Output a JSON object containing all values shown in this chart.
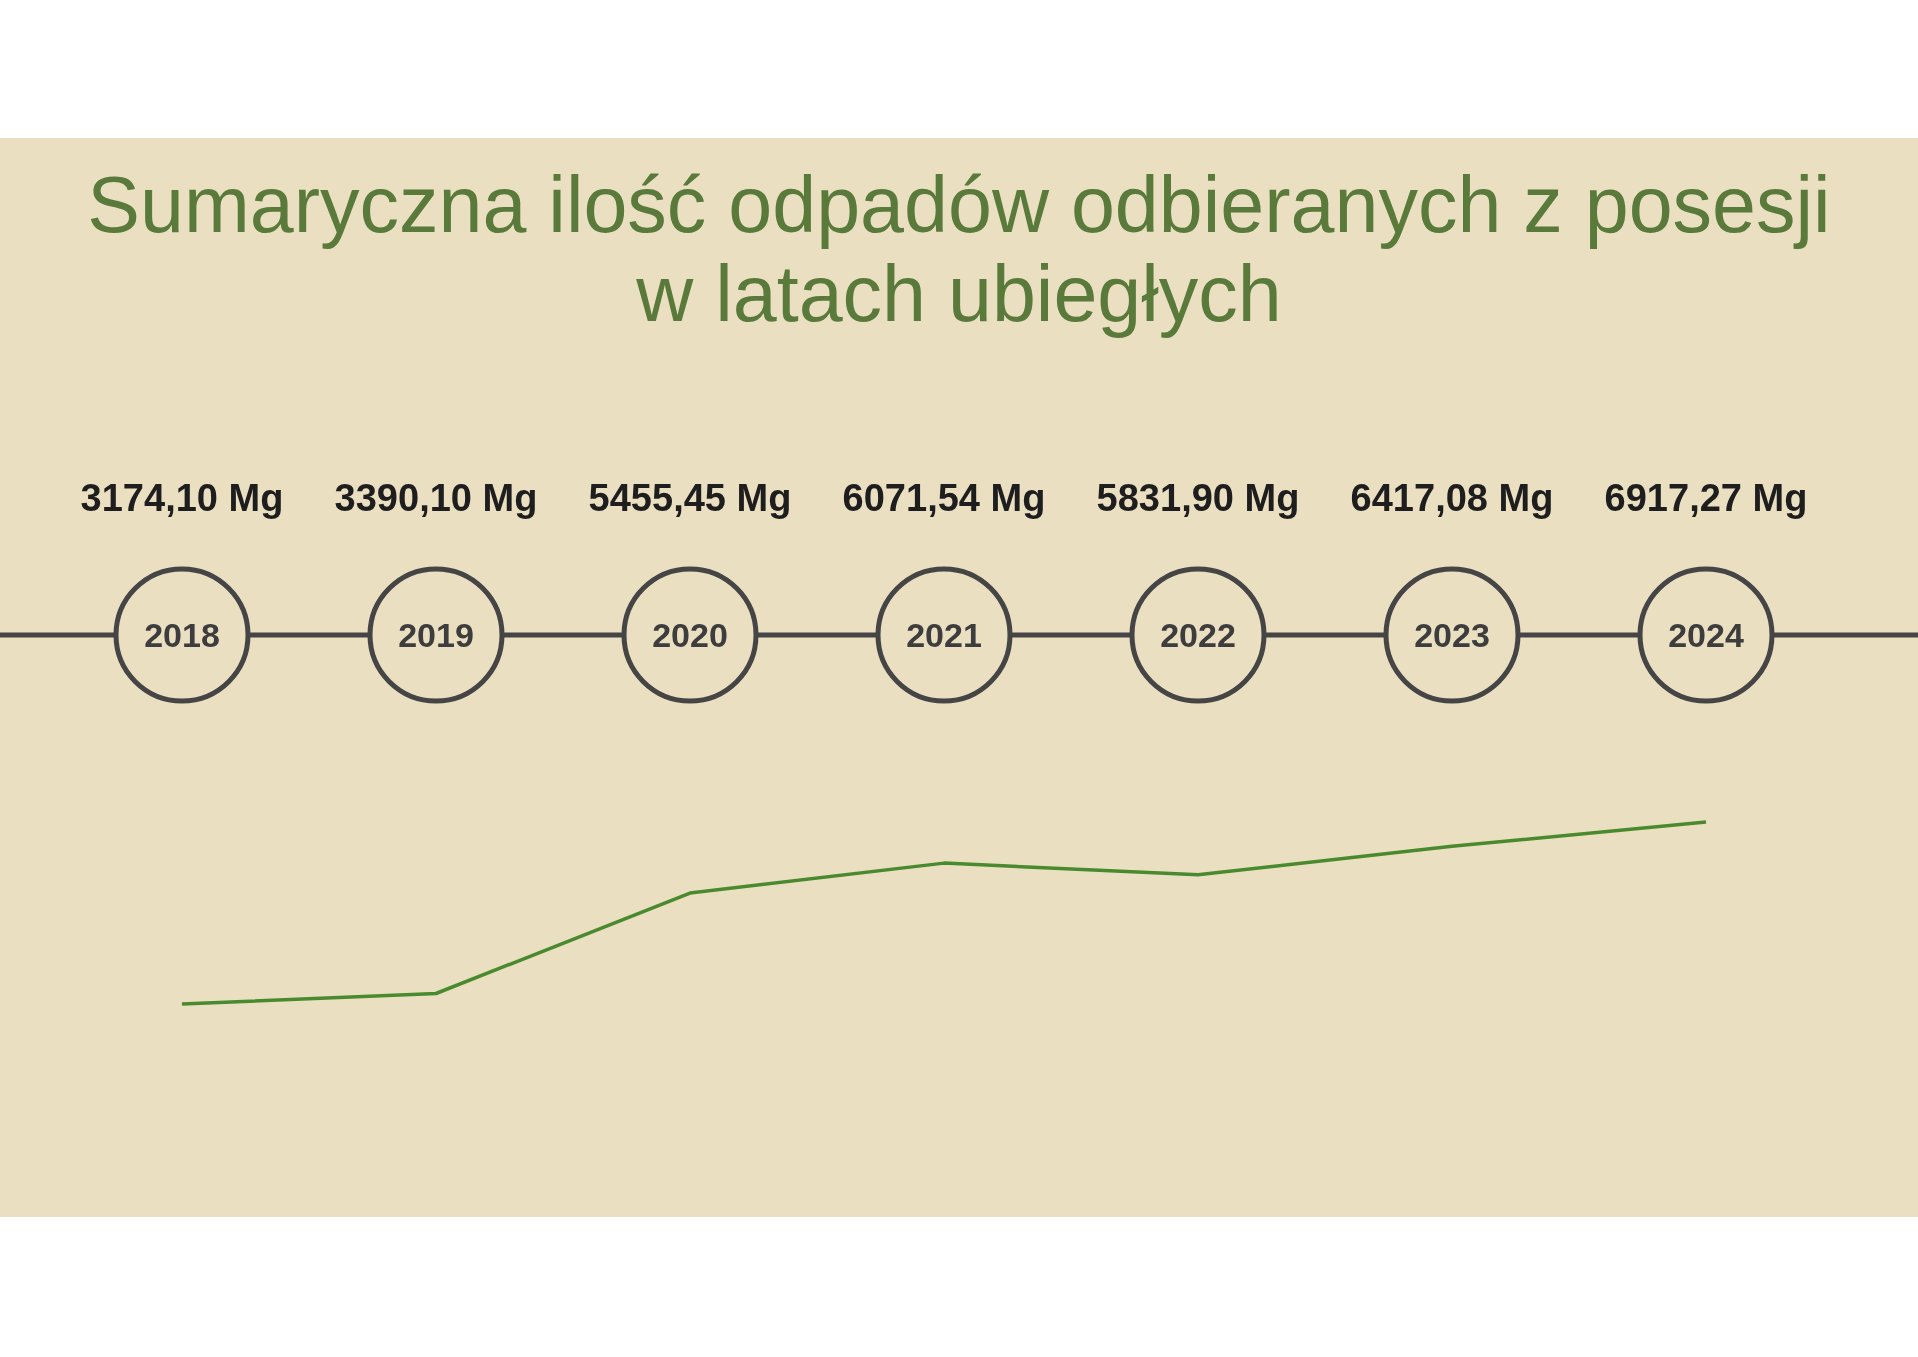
{
  "chart_data": {
    "type": "line",
    "title": "Sumaryczna ilość odpadów odbieranych z posesji w latach ubiegłych",
    "categories": [
      "2018",
      "2019",
      "2020",
      "2021",
      "2022",
      "2023",
      "2024"
    ],
    "values": [
      3174.1,
      3390.1,
      5455.45,
      6071.54,
      5831.9,
      6417.08,
      6917.27
    ],
    "value_labels": [
      "3174,10 Mg",
      "3390,10 Mg",
      "5455,45 Mg",
      "6071,54 Mg",
      "5831,90 Mg",
      "6417,08 Mg",
      "6917,27 Mg"
    ],
    "color": "#4a8a2e",
    "marker": "none"
  }
}
